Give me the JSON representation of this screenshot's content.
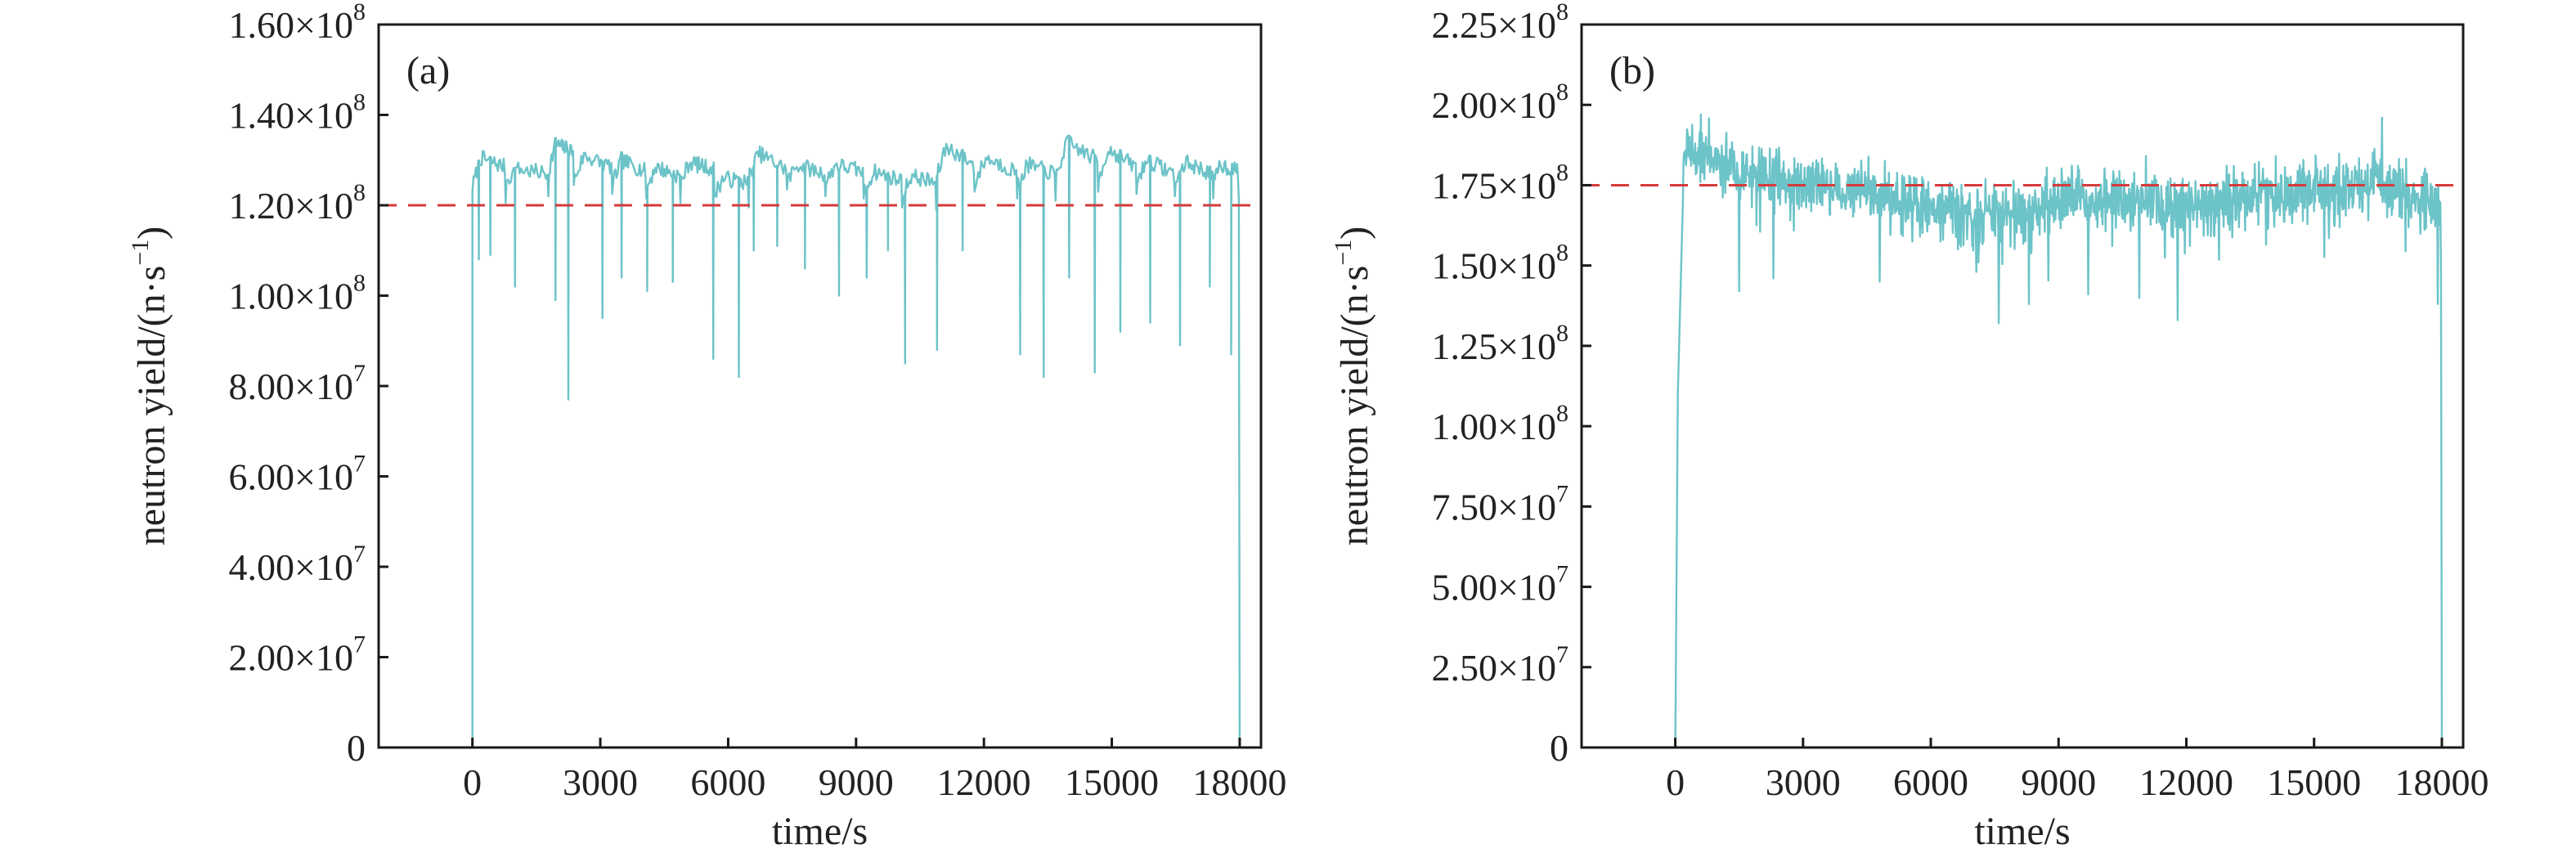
{
  "chart_data": [
    {
      "type": "line",
      "panel_label": "(a)",
      "xlabel": "time/s",
      "ylabel": "neutron yield/(n·s",
      "ylabel_sup": "−1",
      "ylabel_tail": ")",
      "xlim": [
        -2200,
        18500
      ],
      "ylim": [
        0,
        160000000
      ],
      "xticks": [
        0,
        3000,
        6000,
        9000,
        12000,
        15000,
        18000
      ],
      "xtick_labels": [
        "0",
        "3000",
        "6000",
        "9000",
        "12000",
        "15000",
        "18000"
      ],
      "yticks": [
        0,
        20000000,
        40000000,
        60000000,
        80000000,
        100000000,
        120000000,
        140000000,
        160000000
      ],
      "ytick_labels": [
        {
          "mant": "0",
          "exp": ""
        },
        {
          "mant": "2.00×10",
          "exp": "7"
        },
        {
          "mant": "4.00×10",
          "exp": "7"
        },
        {
          "mant": "6.00×10",
          "exp": "7"
        },
        {
          "mant": "8.00×10",
          "exp": "7"
        },
        {
          "mant": "1.00×10",
          "exp": "8"
        },
        {
          "mant": "1.20×10",
          "exp": "8"
        },
        {
          "mant": "1.40×10",
          "exp": "8"
        },
        {
          "mant": "1.60×10",
          "exp": "8"
        }
      ],
      "reference_line": 120000000,
      "series_color": "#6cc3c8",
      "reference_color": "#d63a3a",
      "run": {
        "start": 0,
        "end": 18000
      },
      "segments": [
        {
          "start": 0,
          "end": 800,
          "levels": [
            124000000,
            130500000,
            128500000
          ]
        },
        {
          "start": 800,
          "end": 1800,
          "levels": [
            125500000,
            128000000,
            127000000
          ]
        },
        {
          "start": 1800,
          "end": 2400,
          "levels": [
            128000000,
            133500000,
            132000000
          ]
        },
        {
          "start": 2400,
          "end": 3300,
          "levels": [
            126000000,
            131000000,
            128500000
          ]
        },
        {
          "start": 3300,
          "end": 4100,
          "levels": [
            125000000,
            130000000,
            127500000
          ]
        },
        {
          "start": 4100,
          "end": 4900,
          "levels": [
            124000000,
            128500000,
            126500000
          ]
        },
        {
          "start": 4900,
          "end": 5700,
          "levels": [
            125500000,
            129500000,
            128000000
          ]
        },
        {
          "start": 5700,
          "end": 6500,
          "levels": [
            123000000,
            126000000,
            125000000
          ]
        },
        {
          "start": 6500,
          "end": 7400,
          "levels": [
            127000000,
            131500000,
            128000000
          ]
        },
        {
          "start": 7400,
          "end": 8300,
          "levels": [
            125500000,
            129000000,
            127000000
          ]
        },
        {
          "start": 8300,
          "end": 9200,
          "levels": [
            125000000,
            129000000,
            127500000
          ]
        },
        {
          "start": 9200,
          "end": 10100,
          "levels": [
            123000000,
            127500000,
            125500000
          ]
        },
        {
          "start": 10100,
          "end": 10900,
          "levels": [
            122500000,
            126500000,
            125000000
          ]
        },
        {
          "start": 10900,
          "end": 11800,
          "levels": [
            126500000,
            133000000,
            129000000
          ]
        },
        {
          "start": 11800,
          "end": 12800,
          "levels": [
            125000000,
            130500000,
            127500000
          ]
        },
        {
          "start": 12800,
          "end": 13700,
          "levels": [
            124500000,
            129000000,
            127000000
          ]
        },
        {
          "start": 13700,
          "end": 14700,
          "levels": [
            126500000,
            134000000,
            130000000
          ]
        },
        {
          "start": 14700,
          "end": 15600,
          "levels": [
            126000000,
            132500000,
            128500000
          ]
        },
        {
          "start": 15600,
          "end": 16500,
          "levels": [
            125500000,
            130000000,
            127000000
          ]
        },
        {
          "start": 16500,
          "end": 17400,
          "levels": [
            125000000,
            129500000,
            127000000
          ]
        },
        {
          "start": 17400,
          "end": 18000,
          "levels": [
            125000000,
            129000000,
            127500000
          ]
        }
      ],
      "dips": [
        {
          "x": 150,
          "y": 108000000
        },
        {
          "x": 420,
          "y": 109000000
        },
        {
          "x": 1000,
          "y": 102000000
        },
        {
          "x": 1950,
          "y": 99000000
        },
        {
          "x": 2250,
          "y": 77000000
        },
        {
          "x": 3050,
          "y": 95000000
        },
        {
          "x": 3500,
          "y": 104000000
        },
        {
          "x": 4100,
          "y": 101000000
        },
        {
          "x": 4700,
          "y": 103000000
        },
        {
          "x": 5650,
          "y": 86000000
        },
        {
          "x": 6250,
          "y": 82000000
        },
        {
          "x": 6600,
          "y": 110000000
        },
        {
          "x": 7150,
          "y": 111000000
        },
        {
          "x": 7800,
          "y": 106000000
        },
        {
          "x": 8600,
          "y": 100000000
        },
        {
          "x": 9250,
          "y": 104000000
        },
        {
          "x": 9750,
          "y": 110000000
        },
        {
          "x": 10150,
          "y": 85000000
        },
        {
          "x": 10900,
          "y": 88000000
        },
        {
          "x": 11500,
          "y": 110000000
        },
        {
          "x": 12850,
          "y": 87000000
        },
        {
          "x": 13400,
          "y": 82000000
        },
        {
          "x": 14000,
          "y": 104000000
        },
        {
          "x": 14600,
          "y": 83000000
        },
        {
          "x": 15200,
          "y": 92000000
        },
        {
          "x": 15900,
          "y": 94000000
        },
        {
          "x": 16600,
          "y": 89000000
        },
        {
          "x": 17300,
          "y": 102000000
        },
        {
          "x": 17800,
          "y": 87000000
        }
      ],
      "noise": 1800000,
      "seed": 7
    },
    {
      "type": "line",
      "panel_label": "(b)",
      "xlabel": "time/s",
      "ylabel": "neutron yield/(n·s",
      "ylabel_sup": "−1",
      "ylabel_tail": ")",
      "xlim": [
        -2200,
        18500
      ],
      "ylim": [
        0,
        225000000
      ],
      "xticks": [
        0,
        3000,
        6000,
        9000,
        12000,
        15000,
        18000
      ],
      "xtick_labels": [
        "0",
        "3000",
        "6000",
        "9000",
        "12000",
        "15000",
        "18000"
      ],
      "yticks": [
        0,
        25000000,
        50000000,
        75000000,
        100000000,
        125000000,
        150000000,
        175000000,
        200000000,
        225000000
      ],
      "ytick_labels": [
        {
          "mant": "0",
          "exp": ""
        },
        {
          "mant": "2.50×10",
          "exp": "7"
        },
        {
          "mant": "5.00×10",
          "exp": "7"
        },
        {
          "mant": "7.50×10",
          "exp": "7"
        },
        {
          "mant": "1.00×10",
          "exp": "8"
        },
        {
          "mant": "1.25×10",
          "exp": "8"
        },
        {
          "mant": "1.50×10",
          "exp": "8"
        },
        {
          "mant": "1.75×10",
          "exp": "8"
        },
        {
          "mant": "2.00×10",
          "exp": "8"
        },
        {
          "mant": "2.25×10",
          "exp": "8"
        }
      ],
      "reference_line": 175000000,
      "series_color": "#6cc3c8",
      "reference_color": "#d63a3a",
      "run": {
        "start": 0,
        "end": 18000
      },
      "ramp": [
        {
          "x": 0,
          "y": 0
        },
        {
          "x": 60,
          "y": 110000000
        },
        {
          "x": 180,
          "y": 170000000
        }
      ],
      "envelope": [
        {
          "x": 180,
          "mean": 186000000
        },
        {
          "x": 1200,
          "mean": 182000000
        },
        {
          "x": 3000,
          "mean": 174000000
        },
        {
          "x": 5000,
          "mean": 172000000
        },
        {
          "x": 7000,
          "mean": 164000000
        },
        {
          "x": 9000,
          "mean": 170000000
        },
        {
          "x": 11000,
          "mean": 172000000
        },
        {
          "x": 12000,
          "mean": 168000000
        },
        {
          "x": 14000,
          "mean": 173000000
        },
        {
          "x": 16500,
          "mean": 176000000
        },
        {
          "x": 18000,
          "mean": 168000000
        }
      ],
      "spread": 9000000,
      "spikes": [
        {
          "x": 600,
          "y": 197000000
        },
        {
          "x": 1500,
          "y": 142000000
        },
        {
          "x": 2300,
          "y": 146000000
        },
        {
          "x": 4800,
          "y": 145000000
        },
        {
          "x": 7600,
          "y": 132000000
        },
        {
          "x": 8300,
          "y": 138000000
        },
        {
          "x": 9700,
          "y": 141000000
        },
        {
          "x": 10900,
          "y": 140000000
        },
        {
          "x": 11800,
          "y": 133000000
        },
        {
          "x": 16600,
          "y": 196000000
        },
        {
          "x": 17900,
          "y": 138000000
        }
      ],
      "seed": 19
    }
  ]
}
